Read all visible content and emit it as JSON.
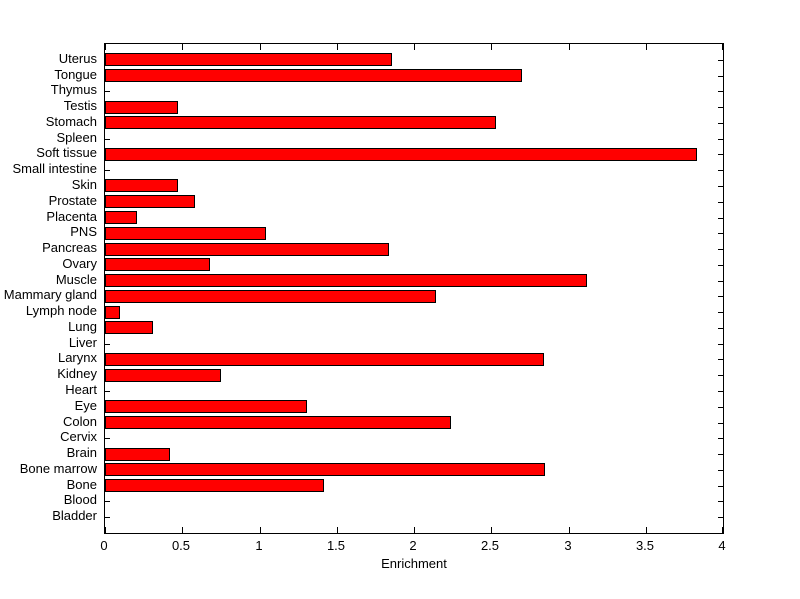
{
  "figure": {
    "background_color": "#ffffff",
    "axis_color": "#000000"
  },
  "chart_data": {
    "type": "bar",
    "orientation": "horizontal",
    "title": "",
    "xlabel": "Enrichment",
    "ylabel": "",
    "categories": [
      "Uterus",
      "Tongue",
      "Thymus",
      "Testis",
      "Stomach",
      "Spleen",
      "Soft tissue",
      "Small intestine",
      "Skin",
      "Prostate",
      "Placenta",
      "PNS",
      "Pancreas",
      "Ovary",
      "Muscle",
      "Mammary gland",
      "Lymph node",
      "Lung",
      "Liver",
      "Larynx",
      "Kidney",
      "Heart",
      "Eye",
      "Colon",
      "Cervix",
      "Brain",
      "Bone marrow",
      "Bone",
      "Blood",
      "Bladder"
    ],
    "values": [
      1.86,
      2.7,
      0,
      0.47,
      2.53,
      0,
      3.83,
      0,
      0.47,
      0.58,
      0.21,
      1.04,
      1.84,
      0.68,
      3.12,
      2.14,
      0.1,
      0.31,
      0,
      2.84,
      0.75,
      0,
      1.31,
      2.24,
      0,
      0.42,
      2.85,
      1.42,
      0,
      0
    ],
    "xlim": [
      0,
      4
    ],
    "xticks": [
      0,
      0.5,
      1,
      1.5,
      2,
      2.5,
      3,
      3.5,
      4
    ],
    "xtick_labels": [
      "0",
      "0.5",
      "1",
      "1.5",
      "2",
      "2.5",
      "3",
      "3.5",
      "4"
    ],
    "bar_color": "#ff0000",
    "bar_edge_color": "#000000",
    "grid": false,
    "legend": "none"
  }
}
